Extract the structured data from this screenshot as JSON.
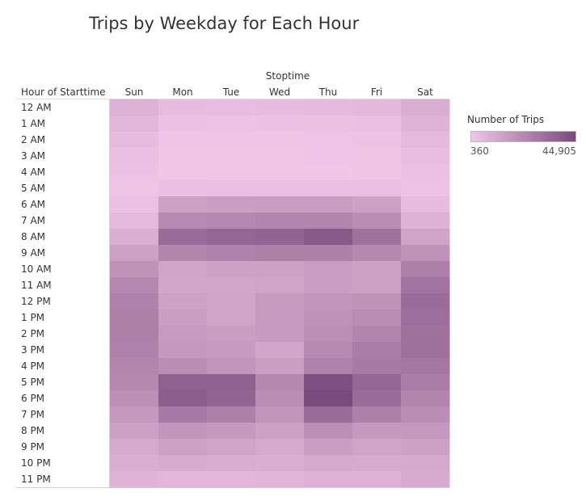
{
  "chart_data": {
    "type": "heatmap",
    "title": "Trips by Weekday for Each Hour",
    "column_header": "Stoptime",
    "row_header": "Hour of Starttime",
    "x": [
      "Sun",
      "Mon",
      "Tue",
      "Wed",
      "Thu",
      "Fri",
      "Sat"
    ],
    "y": [
      "12 AM",
      "1 AM",
      "2 AM",
      "3 AM",
      "4 AM",
      "5 AM",
      "6 AM",
      "7 AM",
      "8 AM",
      "9 AM",
      "10 AM",
      "11 AM",
      "12 PM",
      "1 PM",
      "2 PM",
      "3 PM",
      "4 PM",
      "5 PM",
      "6 PM",
      "7 PM",
      "8 PM",
      "9 PM",
      "10 PM",
      "11 PM"
    ],
    "values": [
      [
        8000,
        4000,
        3500,
        4000,
        4500,
        5500,
        9000
      ],
      [
        6000,
        2000,
        1800,
        2000,
        2300,
        3000,
        7000
      ],
      [
        4000,
        1200,
        1000,
        1200,
        1300,
        1800,
        5000
      ],
      [
        3000,
        800,
        700,
        800,
        900,
        1200,
        3500
      ],
      [
        2000,
        700,
        600,
        700,
        800,
        1000,
        2500
      ],
      [
        1500,
        3000,
        3200,
        3300,
        3300,
        3200,
        1800
      ],
      [
        2500,
        14000,
        15000,
        15500,
        15500,
        14000,
        4000
      ],
      [
        5000,
        22000,
        23000,
        24000,
        24000,
        21000,
        8000
      ],
      [
        9000,
        33000,
        35000,
        36000,
        40000,
        31000,
        13000
      ],
      [
        14000,
        24000,
        25000,
        26000,
        26000,
        23000,
        19000
      ],
      [
        19000,
        13000,
        14000,
        14000,
        15000,
        14000,
        26000
      ],
      [
        23000,
        12000,
        12000,
        13000,
        15000,
        14000,
        30000
      ],
      [
        25000,
        14000,
        13000,
        16000,
        18000,
        19000,
        33000
      ],
      [
        26000,
        15000,
        13000,
        16000,
        19000,
        21000,
        32000
      ],
      [
        26000,
        16000,
        15000,
        16000,
        20000,
        24000,
        31000
      ],
      [
        25000,
        17000,
        16000,
        12000,
        22000,
        27000,
        31000
      ],
      [
        24000,
        21000,
        18000,
        15000,
        25000,
        28000,
        29000
      ],
      [
        23000,
        37000,
        37000,
        23000,
        43000,
        35000,
        27000
      ],
      [
        20000,
        38000,
        36000,
        21000,
        44905,
        33000,
        24000
      ],
      [
        17000,
        28000,
        26000,
        18000,
        33000,
        26000,
        21000
      ],
      [
        14000,
        18000,
        17000,
        14000,
        20000,
        17000,
        17000
      ],
      [
        11000,
        14000,
        13000,
        11000,
        15000,
        13000,
        14000
      ],
      [
        9000,
        10000,
        9500,
        9000,
        11000,
        10000,
        11000
      ],
      [
        7000,
        6000,
        6000,
        6500,
        8000,
        8000,
        10000
      ]
    ],
    "legend": {
      "title": "Number of Trips",
      "min_label": "360",
      "max_label": "44,905",
      "min": 360,
      "max": 44905,
      "color_low": "#f1c6e7",
      "color_high": "#7b4a7c",
      "placement": "right"
    }
  }
}
